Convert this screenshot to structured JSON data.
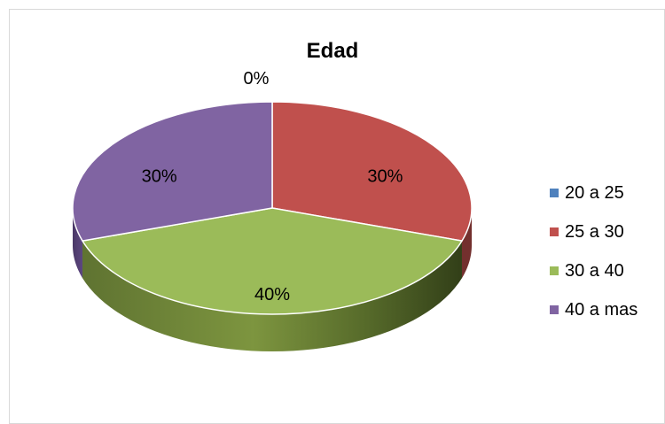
{
  "chart_data": {
    "type": "pie",
    "title": "Edad",
    "categories": [
      "20 a 25",
      "25 a 30",
      "30 a 40",
      "40 a mas"
    ],
    "values": [
      0,
      30,
      40,
      30
    ],
    "labels": [
      "0%",
      "30%",
      "40%",
      "30%"
    ],
    "colors": [
      "#4f81bd",
      "#c0504d",
      "#9bbb59",
      "#8064a2"
    ],
    "legend_position": "right",
    "three_d": true
  }
}
